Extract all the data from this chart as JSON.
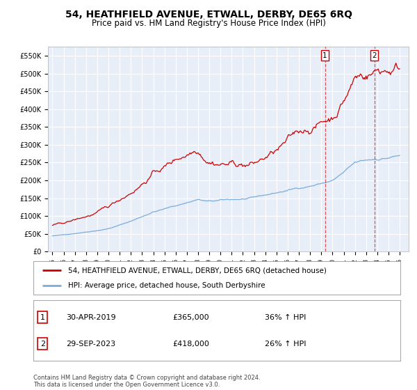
{
  "title": "54, HEATHFIELD AVENUE, ETWALL, DERBY, DE65 6RQ",
  "subtitle": "Price paid vs. HM Land Registry's House Price Index (HPI)",
  "ylabel_ticks": [
    "£0",
    "£50K",
    "£100K",
    "£150K",
    "£200K",
    "£250K",
    "£300K",
    "£350K",
    "£400K",
    "£450K",
    "£500K",
    "£550K"
  ],
  "ytick_values": [
    0,
    50000,
    100000,
    150000,
    200000,
    250000,
    300000,
    350000,
    400000,
    450000,
    500000,
    550000
  ],
  "ylim": [
    0,
    575000
  ],
  "marker1_x": 2019.33,
  "marker2_x": 2023.75,
  "legend_line1": "54, HEATHFIELD AVENUE, ETWALL, DERBY, DE65 6RQ (detached house)",
  "legend_line2": "HPI: Average price, detached house, South Derbyshire",
  "annotation1_num": "1",
  "annotation1_date": "30-APR-2019",
  "annotation1_price": "£365,000",
  "annotation1_hpi": "36% ↑ HPI",
  "annotation2_num": "2",
  "annotation2_date": "29-SEP-2023",
  "annotation2_price": "£418,000",
  "annotation2_hpi": "26% ↑ HPI",
  "footer": "Contains HM Land Registry data © Crown copyright and database right 2024.\nThis data is licensed under the Open Government Licence v3.0.",
  "line_red_color": "#cc0000",
  "line_blue_color": "#7aacdc",
  "bg_color": "#e8eef8",
  "grid_color": "#ffffff",
  "title_fontsize": 10,
  "subtitle_fontsize": 8.5
}
